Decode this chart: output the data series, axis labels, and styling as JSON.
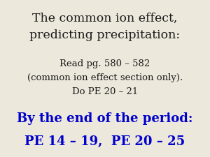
{
  "background_color": "#ede8dc",
  "title_line1": "The common ion effect,",
  "title_line2": "predicting precipitation:",
  "title_color": "#1a1a1a",
  "title_fontsize": 12.5,
  "body_line1": "Read pg. 580 – 582",
  "body_line2": "(common ion effect section only).",
  "body_line3": "Do PE 20 – 21",
  "body_color": "#1a1a1a",
  "body_fontsize": 9.5,
  "footer_line1": "By the end of the period:",
  "footer_line2": "PE 14 – 19,  PE 20 – 25",
  "footer_color": "#0000cc",
  "footer_fontsize": 13.0
}
